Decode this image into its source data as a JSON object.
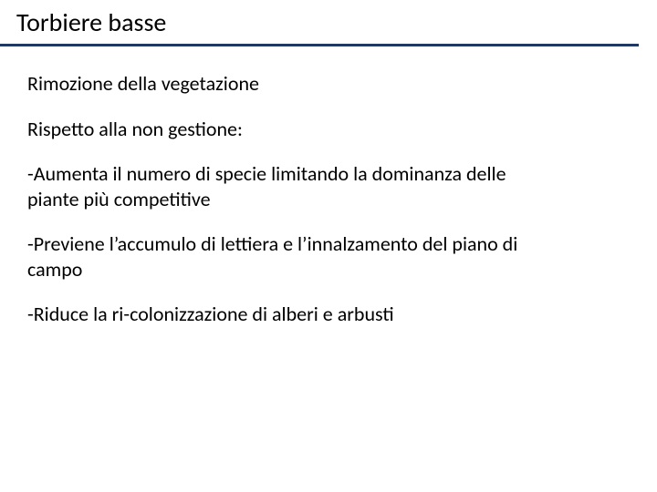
{
  "slide": {
    "title": "Torbiere basse",
    "underline_color": "#1f3864",
    "text_color": "#000000",
    "background_color": "#ffffff",
    "title_fontsize": 28,
    "body_fontsize": 22,
    "paragraphs": {
      "p0": "Rimozione della vegetazione",
      "p1": "Rispetto alla non gestione:",
      "p2": "-Aumenta il numero di specie limitando la dominanza delle piante più competitive",
      "p3": "-Previene l’accumulo di lettiera e l’innalzamento del piano di campo",
      "p4": "-Riduce la ri-colonizzazione di alberi e arbusti"
    }
  }
}
